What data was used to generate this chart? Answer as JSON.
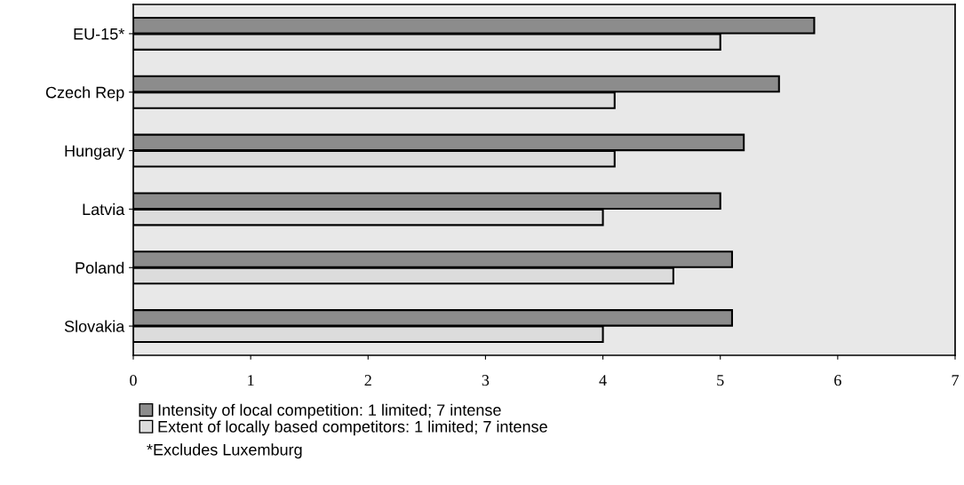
{
  "chart_data": {
    "type": "bar",
    "orientation": "horizontal",
    "categories": [
      "EU-15*",
      "Czech Rep",
      "Hungary",
      "Latvia",
      "Poland",
      "Slovakia"
    ],
    "series": [
      {
        "name": "Intensity of local competition: 1 limited; 7 intense",
        "color": "#8c8c8c",
        "values": [
          5.8,
          5.5,
          5.2,
          5.0,
          5.1,
          5.1
        ]
      },
      {
        "name": "Extent of locally based competitors: 1 limited; 7 intense",
        "color": "#dcdcdc",
        "values": [
          5.0,
          4.1,
          4.1,
          4.0,
          4.6,
          4.0
        ]
      }
    ],
    "xlim": [
      0,
      7
    ],
    "xticks": [
      0,
      1,
      2,
      3,
      4,
      5,
      6,
      7
    ],
    "grid": false,
    "legend": "bottom left",
    "annotations": [
      "*Excludes Luxemburg"
    ]
  }
}
